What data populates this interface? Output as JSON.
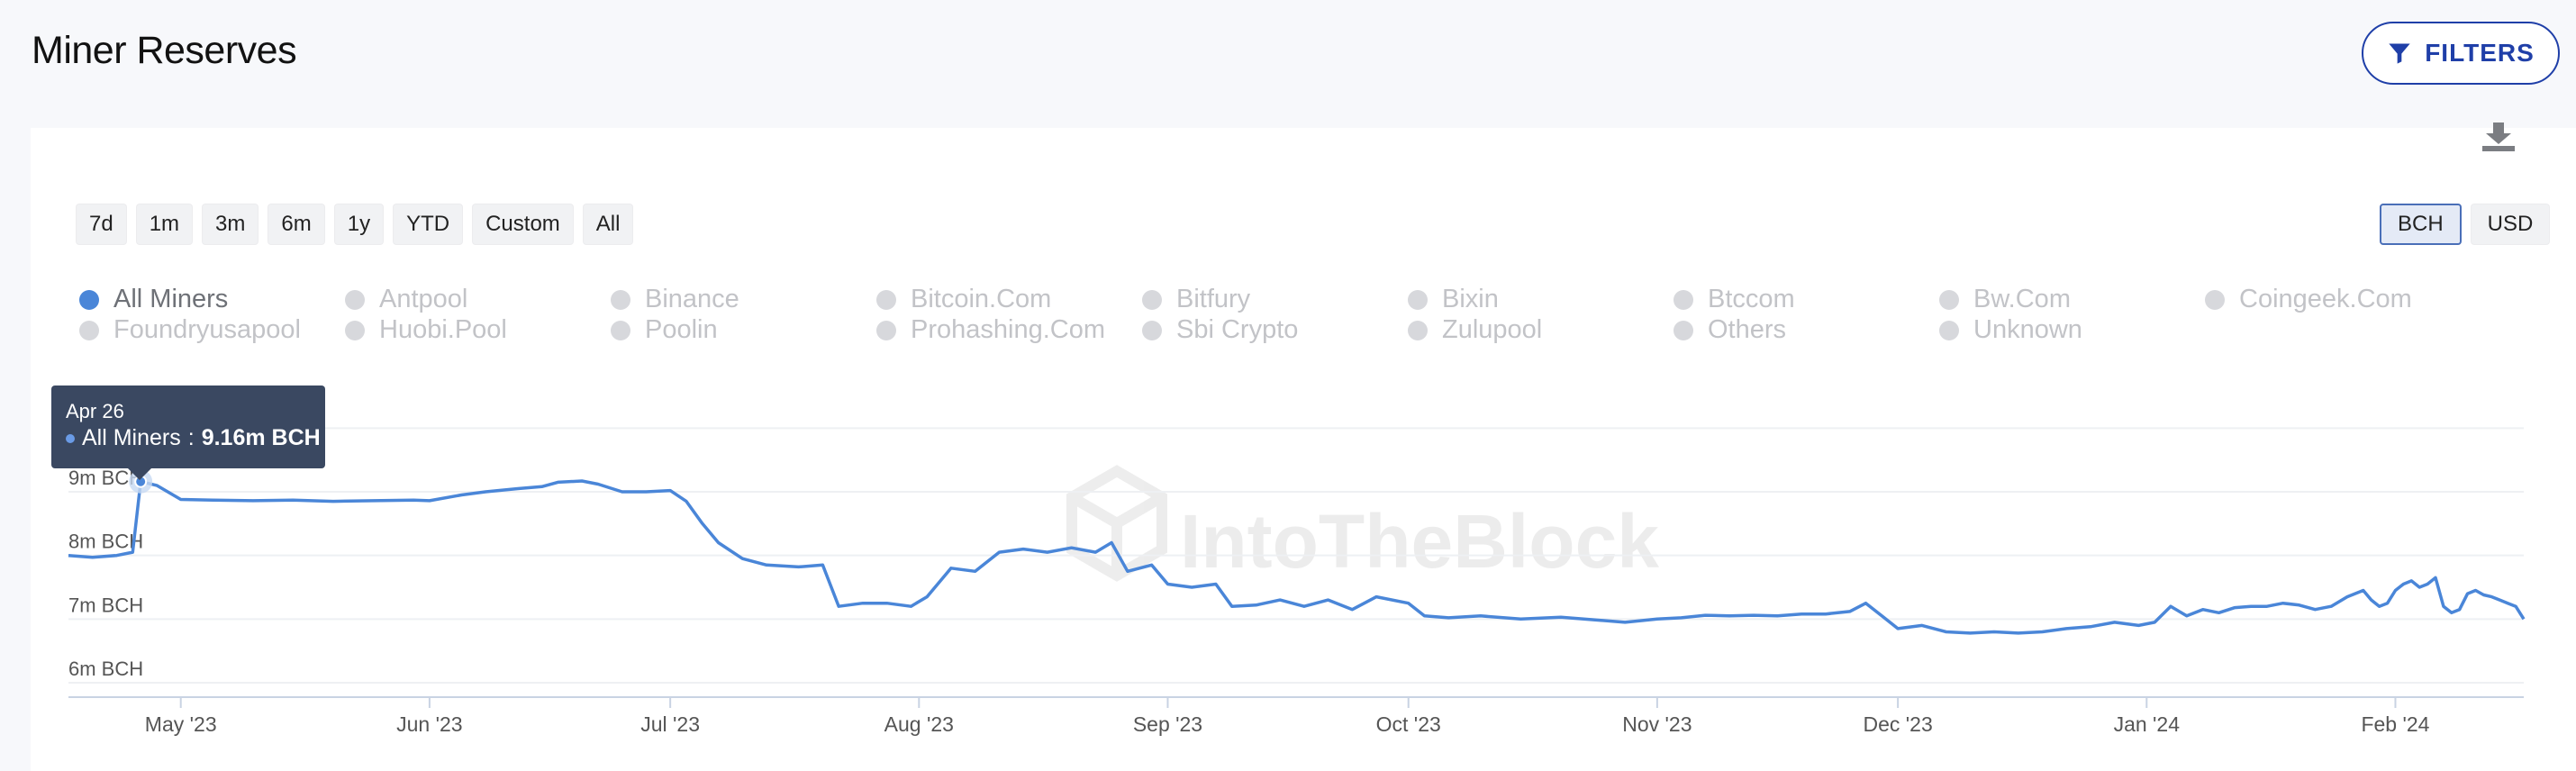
{
  "page": {
    "title": "Miner Reserves"
  },
  "toolbar": {
    "filters_label": "FILTERS"
  },
  "range_buttons": [
    "7d",
    "1m",
    "3m",
    "6m",
    "1y",
    "YTD",
    "Custom",
    "All"
  ],
  "unit_buttons": [
    {
      "label": "BCH",
      "active": true
    },
    {
      "label": "USD",
      "active": false
    }
  ],
  "legend": [
    {
      "label": "All Miners",
      "active": true
    },
    {
      "label": "Antpool",
      "active": false
    },
    {
      "label": "Binance",
      "active": false
    },
    {
      "label": "Bitcoin.Com",
      "active": false
    },
    {
      "label": "Bitfury",
      "active": false
    },
    {
      "label": "Bixin",
      "active": false
    },
    {
      "label": "Btccom",
      "active": false
    },
    {
      "label": "Bw.Com",
      "active": false
    },
    {
      "label": "Coingeek.Com",
      "active": false
    },
    {
      "label": "Foundryusapool",
      "active": false
    },
    {
      "label": "Huobi.Pool",
      "active": false
    },
    {
      "label": "Poolin",
      "active": false
    },
    {
      "label": "Prohashing.Com",
      "active": false
    },
    {
      "label": "Sbi Crypto",
      "active": false
    },
    {
      "label": "Zulupool",
      "active": false
    },
    {
      "label": "Others",
      "active": false
    },
    {
      "label": "Unknown",
      "active": false
    }
  ],
  "watermark": "IntoTheBlock",
  "tooltip": {
    "date": "Apr 26",
    "series": "All Miners",
    "value": "9.16m BCH"
  },
  "colors": {
    "line": "#4a86d8",
    "accent": "#1f3fa8",
    "tooltip_bg": "#3a4861"
  },
  "chart_data": {
    "type": "line",
    "ylim": [
      6,
      10
    ],
    "y_ticks": [
      {
        "value": 6,
        "label": "6m BCH"
      },
      {
        "value": 7,
        "label": "7m BCH"
      },
      {
        "value": 8,
        "label": "8m BCH"
      },
      {
        "value": 9,
        "label": "9m BCH"
      }
    ],
    "x_ticks": [
      {
        "date": "2023-05-01",
        "label": "May '23"
      },
      {
        "date": "2023-06-01",
        "label": "Jun '23"
      },
      {
        "date": "2023-07-01",
        "label": "Jul '23"
      },
      {
        "date": "2023-08-01",
        "label": "Aug '23"
      },
      {
        "date": "2023-09-01",
        "label": "Sep '23"
      },
      {
        "date": "2023-10-01",
        "label": "Oct '23"
      },
      {
        "date": "2023-11-01",
        "label": "Nov '23"
      },
      {
        "date": "2023-12-01",
        "label": "Dec '23"
      },
      {
        "date": "2024-01-01",
        "label": "Jan '24"
      },
      {
        "date": "2024-02-01",
        "label": "Feb '24"
      }
    ],
    "xlim": [
      "2023-04-17",
      "2024-02-17"
    ],
    "series": [
      {
        "name": "All Miners",
        "points": [
          [
            "2023-04-17",
            8.0
          ],
          [
            "2023-04-20",
            7.97
          ],
          [
            "2023-04-23",
            8.0
          ],
          [
            "2023-04-25",
            8.05
          ],
          [
            "2023-04-26",
            9.16
          ],
          [
            "2023-04-28",
            9.1
          ],
          [
            "2023-05-01",
            8.88
          ],
          [
            "2023-05-05",
            8.87
          ],
          [
            "2023-05-10",
            8.86
          ],
          [
            "2023-05-15",
            8.87
          ],
          [
            "2023-05-20",
            8.85
          ],
          [
            "2023-05-25",
            8.86
          ],
          [
            "2023-05-30",
            8.87
          ],
          [
            "2023-06-01",
            8.86
          ],
          [
            "2023-06-05",
            8.95
          ],
          [
            "2023-06-08",
            9.0
          ],
          [
            "2023-06-12",
            9.05
          ],
          [
            "2023-06-15",
            9.08
          ],
          [
            "2023-06-17",
            9.15
          ],
          [
            "2023-06-20",
            9.17
          ],
          [
            "2023-06-22",
            9.12
          ],
          [
            "2023-06-25",
            9.0
          ],
          [
            "2023-06-28",
            9.0
          ],
          [
            "2023-07-01",
            9.02
          ],
          [
            "2023-07-03",
            8.85
          ],
          [
            "2023-07-05",
            8.5
          ],
          [
            "2023-07-07",
            8.2
          ],
          [
            "2023-07-10",
            7.95
          ],
          [
            "2023-07-13",
            7.85
          ],
          [
            "2023-07-17",
            7.82
          ],
          [
            "2023-07-20",
            7.85
          ],
          [
            "2023-07-22",
            7.2
          ],
          [
            "2023-07-25",
            7.25
          ],
          [
            "2023-07-28",
            7.25
          ],
          [
            "2023-07-31",
            7.2
          ],
          [
            "2023-08-02",
            7.35
          ],
          [
            "2023-08-05",
            7.8
          ],
          [
            "2023-08-08",
            7.75
          ],
          [
            "2023-08-11",
            8.05
          ],
          [
            "2023-08-14",
            8.1
          ],
          [
            "2023-08-17",
            8.05
          ],
          [
            "2023-08-20",
            8.12
          ],
          [
            "2023-08-23",
            8.05
          ],
          [
            "2023-08-25",
            8.2
          ],
          [
            "2023-08-27",
            7.75
          ],
          [
            "2023-08-30",
            7.85
          ],
          [
            "2023-09-01",
            7.55
          ],
          [
            "2023-09-04",
            7.5
          ],
          [
            "2023-09-07",
            7.55
          ],
          [
            "2023-09-09",
            7.2
          ],
          [
            "2023-09-12",
            7.22
          ],
          [
            "2023-09-15",
            7.3
          ],
          [
            "2023-09-18",
            7.2
          ],
          [
            "2023-09-21",
            7.3
          ],
          [
            "2023-09-24",
            7.15
          ],
          [
            "2023-09-27",
            7.35
          ],
          [
            "2023-10-01",
            7.25
          ],
          [
            "2023-10-03",
            7.05
          ],
          [
            "2023-10-06",
            7.02
          ],
          [
            "2023-10-10",
            7.05
          ],
          [
            "2023-10-15",
            7.0
          ],
          [
            "2023-10-20",
            7.03
          ],
          [
            "2023-10-25",
            6.98
          ],
          [
            "2023-10-28",
            6.95
          ],
          [
            "2023-11-01",
            7.0
          ],
          [
            "2023-11-04",
            7.02
          ],
          [
            "2023-11-07",
            7.06
          ],
          [
            "2023-11-10",
            7.05
          ],
          [
            "2023-11-13",
            7.06
          ],
          [
            "2023-11-16",
            7.05
          ],
          [
            "2023-11-19",
            7.08
          ],
          [
            "2023-11-22",
            7.08
          ],
          [
            "2023-11-25",
            7.12
          ],
          [
            "2023-11-27",
            7.25
          ],
          [
            "2023-11-29",
            7.05
          ],
          [
            "2023-12-01",
            6.85
          ],
          [
            "2023-12-04",
            6.9
          ],
          [
            "2023-12-07",
            6.8
          ],
          [
            "2023-12-10",
            6.78
          ],
          [
            "2023-12-13",
            6.8
          ],
          [
            "2023-12-16",
            6.78
          ],
          [
            "2023-12-19",
            6.8
          ],
          [
            "2023-12-22",
            6.85
          ],
          [
            "2023-12-25",
            6.88
          ],
          [
            "2023-12-28",
            6.95
          ],
          [
            "2023-12-31",
            6.9
          ],
          [
            "2024-01-02",
            6.95
          ],
          [
            "2024-01-04",
            7.2
          ],
          [
            "2024-01-06",
            7.05
          ],
          [
            "2024-01-08",
            7.15
          ],
          [
            "2024-01-10",
            7.1
          ],
          [
            "2024-01-12",
            7.18
          ],
          [
            "2024-01-14",
            7.2
          ],
          [
            "2024-01-16",
            7.2
          ],
          [
            "2024-01-18",
            7.25
          ],
          [
            "2024-01-20",
            7.22
          ],
          [
            "2024-01-22",
            7.15
          ],
          [
            "2024-01-24",
            7.2
          ],
          [
            "2024-01-26",
            7.35
          ],
          [
            "2024-01-28",
            7.45
          ],
          [
            "2024-01-29",
            7.3
          ],
          [
            "2024-01-30",
            7.2
          ],
          [
            "2024-01-31",
            7.25
          ],
          [
            "2024-02-01",
            7.45
          ],
          [
            "2024-02-02",
            7.55
          ],
          [
            "2024-02-03",
            7.6
          ],
          [
            "2024-02-04",
            7.5
          ],
          [
            "2024-02-05",
            7.55
          ],
          [
            "2024-02-06",
            7.65
          ],
          [
            "2024-02-07",
            7.2
          ],
          [
            "2024-02-08",
            7.1
          ],
          [
            "2024-02-09",
            7.15
          ],
          [
            "2024-02-10",
            7.4
          ],
          [
            "2024-02-11",
            7.45
          ],
          [
            "2024-02-12",
            7.38
          ],
          [
            "2024-02-13",
            7.35
          ],
          [
            "2024-02-14",
            7.3
          ],
          [
            "2024-02-15",
            7.25
          ],
          [
            "2024-02-16",
            7.2
          ],
          [
            "2024-02-17",
            7.0
          ]
        ]
      }
    ],
    "tooltip_point": [
      "2023-04-26",
      9.16
    ]
  }
}
